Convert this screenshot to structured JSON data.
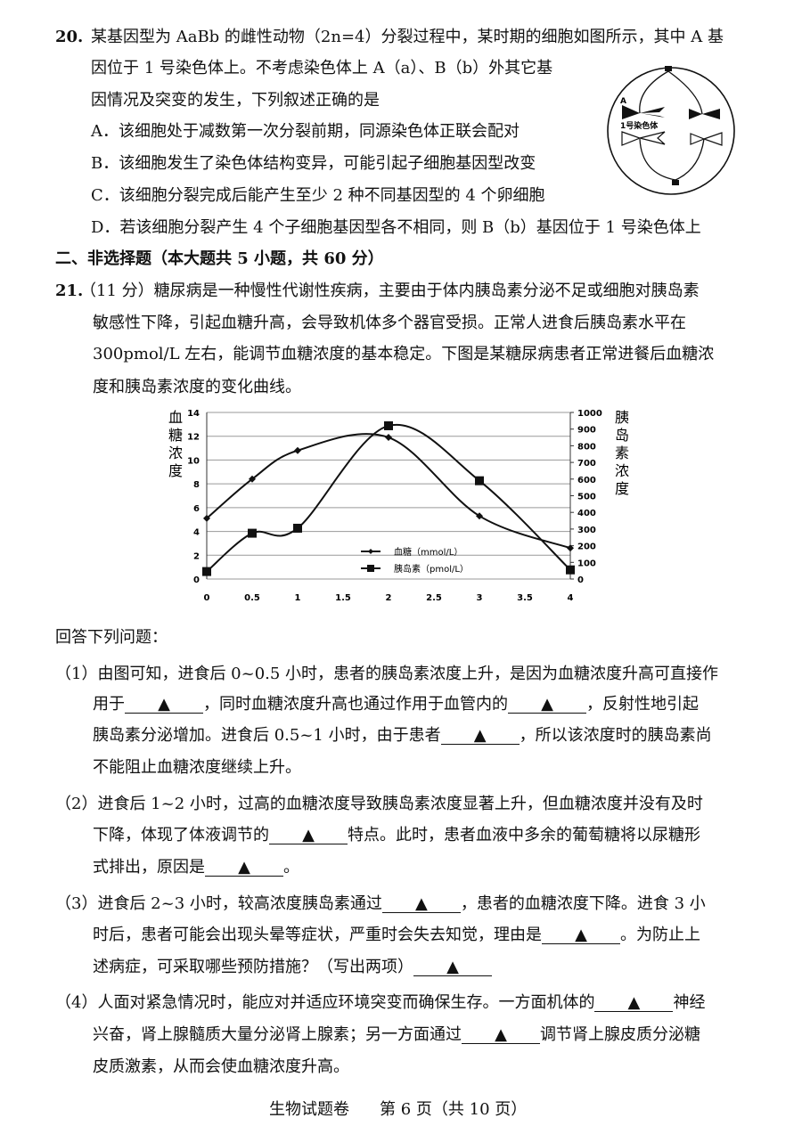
{
  "q20": {
    "number": "20.",
    "lines": [
      [
        "某基因型为 AaBb 的雌性动物（2n=4）分裂过程中，某时期的细胞如图所示，其中 A 基"
      ],
      [
        "因位于 1 号染色体上。不考虑染色体上 A（a）、B（b）外其它基"
      ],
      [
        "因情况及突变的发生，下列叙述正确的是"
      ]
    ],
    "options": [
      "A．该细胞处于减数第一次分裂前期，同源染色体正联会配对",
      "B．该细胞发生了染色体结构变异，可能引起子细胞基因型改变",
      "C．该细胞分裂完成后能产生至少 2 种不同基因型的 4 个卵细胞",
      "D．若该细胞分裂产生 4 个子细胞基因型各不相同，则 B（b）基因位于 1 号染色体上"
    ],
    "figure": {
      "gene_label": "A",
      "chromosome_label": "1号染色体"
    }
  },
  "section2": {
    "title": "二、非选择题（本大题共 5 小题，共 60 分）"
  },
  "q21": {
    "number": "21.",
    "intro": [
      "（11 分）糖尿病是一种慢性代谢性疾病，主要由于体内胰岛素分泌不足或细胞对胰岛素",
      "敏感性下降，引起血糖升高，会导致机体多个器官受损。正常人进食后胰岛素水平在",
      "300pmol/L 左右，能调节血糖浓度的基本稳定。下图是某糖尿病患者正常进餐后血糖浓",
      "度和胰岛素浓度的变化曲线。"
    ],
    "answer_prompt": "回答下列问题：",
    "blank_mark": "▲",
    "parts": [
      [
        [
          "（1）由图可知，进食后 0~0.5 小时，患者的胰岛素浓度上升，是因为血糖浓度升高可直接作"
        ],
        [
          "用于",
          null,
          "，同时血糖浓度升高也通过作用于血管内的",
          null,
          "，反射性地引起"
        ],
        [
          "胰岛素分泌增加。进食后 0.5~1 小时，由于患者",
          null,
          "，所以该浓度时的胰岛素尚"
        ],
        [
          "不能阻止血糖浓度继续上升。"
        ]
      ],
      [
        [
          "（2）进食后 1~2 小时，过高的血糖浓度导致胰岛素浓度显著上升，但血糖浓度并没有及时"
        ],
        [
          "下降，体现了体液调节的",
          null,
          "特点。此时，患者血液中多余的葡萄糖将以尿糖形"
        ],
        [
          "式排出，原因是",
          null,
          "。"
        ]
      ],
      [
        [
          "（3）进食后 2~3 小时，较高浓度胰岛素通过",
          null,
          "，患者的血糖浓度下降。进食 3 小"
        ],
        [
          "时后，患者可能会出现头晕等症状，严重时会失去知觉，理由是",
          null,
          "。为防止上"
        ],
        [
          "述病症，可采取哪些预防措施？（写出两项）",
          null
        ]
      ],
      [
        [
          "（4）人面对紧急情况时，能应对并适应环境突变而确保生存。一方面机体的",
          null,
          "神经"
        ],
        [
          "兴奋，肾上腺髓质大量分泌肾上腺素；另一方面通过",
          null,
          "调节肾上腺皮质分泌糖"
        ],
        [
          "皮质激素，从而会使血糖浓度升高。"
        ]
      ]
    ]
  },
  "footer": {
    "subject": "生物试题卷",
    "page": "第 6 页（共 10 页）"
  },
  "chart_data": {
    "type": "line",
    "x": [
      0,
      0.5,
      1,
      2,
      3,
      4
    ],
    "x_ticks": [
      "0",
      "0.5",
      "1",
      "1.5",
      "2",
      "2.5",
      "3",
      "3.5",
      "4"
    ],
    "xlim": [
      0,
      4
    ],
    "ylabel": "血糖浓度",
    "ylim": [
      0,
      14
    ],
    "y_ticks": [
      "0",
      "2",
      "4",
      "6",
      "8",
      "10",
      "12",
      "14"
    ],
    "y2label": "胰岛素浓度",
    "y2lim": [
      0,
      1000
    ],
    "y2_ticks": [
      "0",
      "100",
      "200",
      "300",
      "400",
      "500",
      "600",
      "700",
      "800",
      "900",
      "1000"
    ],
    "grid": true,
    "legend_position": "bottom-center",
    "series": [
      {
        "name": "血糖（mmol/L）",
        "axis": "left",
        "marker": "diamond",
        "values": [
          5.1,
          8.4,
          10.8,
          11.9,
          5.3,
          2.6
        ]
      },
      {
        "name": "胰岛素（pmol/L）",
        "axis": "right",
        "marker": "square",
        "values": [
          45,
          275,
          305,
          920,
          590,
          55
        ]
      }
    ]
  }
}
